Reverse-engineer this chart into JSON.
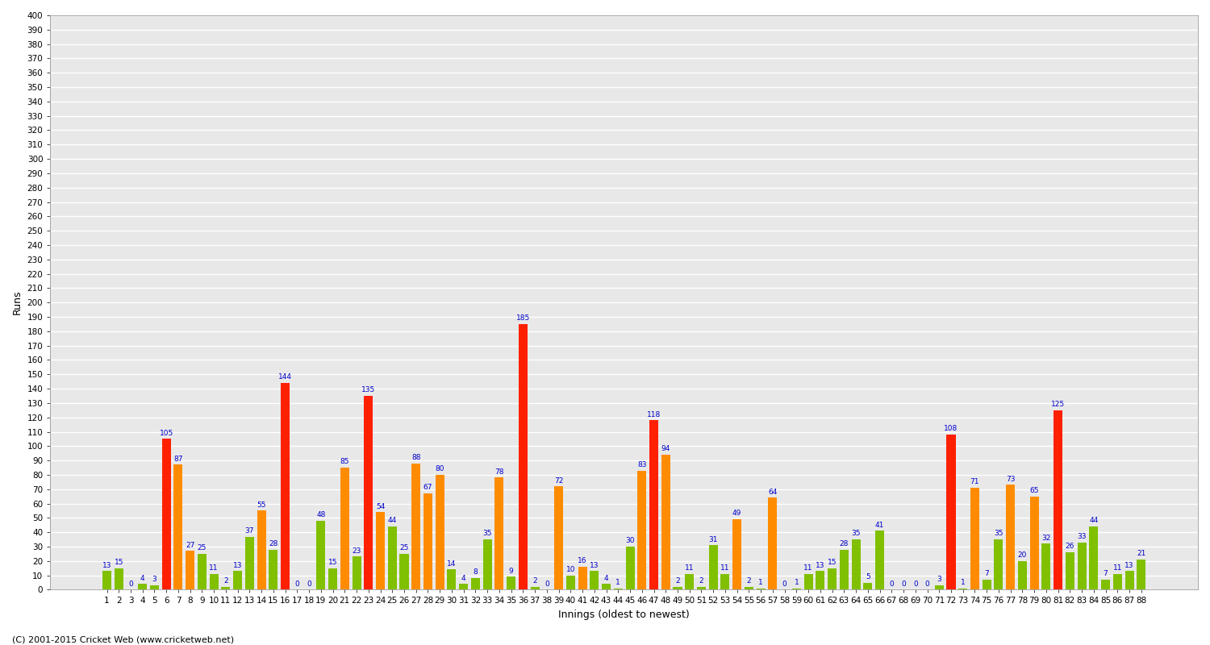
{
  "xlabel": "Innings (oldest to newest)",
  "ylabel": "Runs",
  "plot_bg_color": "#e8e8e8",
  "fig_bg_color": "#ffffff",
  "grid_color": "#ffffff",
  "innings": [
    1,
    2,
    3,
    4,
    5,
    6,
    7,
    8,
    9,
    10,
    11,
    12,
    13,
    14,
    15,
    16,
    17,
    18,
    19,
    20,
    21,
    22,
    23,
    24,
    25,
    26,
    27,
    28,
    29,
    30,
    31,
    32,
    33,
    34,
    35,
    36,
    37,
    38,
    39,
    40,
    41,
    42,
    43,
    44,
    45,
    46,
    47,
    48,
    49,
    50,
    51,
    52,
    53,
    54,
    55,
    56,
    57,
    58,
    59,
    60,
    61,
    62,
    63,
    64,
    65,
    66,
    67,
    68,
    69,
    70,
    71,
    72,
    73,
    74,
    75,
    76,
    77,
    78,
    79,
    80,
    81,
    82,
    83,
    84,
    85,
    86,
    87,
    88
  ],
  "values": [
    13,
    15,
    0,
    4,
    3,
    105,
    87,
    27,
    25,
    11,
    2,
    13,
    37,
    55,
    28,
    144,
    0,
    0,
    48,
    15,
    85,
    23,
    135,
    54,
    44,
    25,
    88,
    67,
    80,
    14,
    4,
    8,
    35,
    78,
    9,
    185,
    2,
    0,
    72,
    10,
    16,
    13,
    4,
    1,
    30,
    83,
    118,
    94,
    2,
    11,
    2,
    31,
    11,
    49,
    2,
    1,
    64,
    0,
    1,
    11,
    13,
    15,
    28,
    35,
    5,
    41,
    0,
    0,
    0,
    0,
    3,
    108,
    1,
    71,
    7,
    35,
    73,
    20,
    65,
    32,
    125,
    26,
    33,
    44,
    7,
    11,
    13,
    21
  ],
  "colors": [
    "#80c000",
    "#80c000",
    "#80c000",
    "#80c000",
    "#80c000",
    "#ff2000",
    "#ff8c00",
    "#ff8c00",
    "#80c000",
    "#80c000",
    "#80c000",
    "#80c000",
    "#80c000",
    "#ff8c00",
    "#80c000",
    "#ff2000",
    "#80c000",
    "#80c000",
    "#80c000",
    "#80c000",
    "#ff8c00",
    "#80c000",
    "#ff2000",
    "#ff8c00",
    "#80c000",
    "#80c000",
    "#ff8c00",
    "#ff8c00",
    "#ff8c00",
    "#80c000",
    "#80c000",
    "#80c000",
    "#80c000",
    "#ff8c00",
    "#80c000",
    "#ff2000",
    "#80c000",
    "#80c000",
    "#ff8c00",
    "#80c000",
    "#ff8c00",
    "#80c000",
    "#80c000",
    "#80c000",
    "#80c000",
    "#ff8c00",
    "#ff2000",
    "#ff8c00",
    "#80c000",
    "#80c000",
    "#80c000",
    "#80c000",
    "#80c000",
    "#ff8c00",
    "#80c000",
    "#80c000",
    "#ff8c00",
    "#80c000",
    "#80c000",
    "#80c000",
    "#80c000",
    "#80c000",
    "#80c000",
    "#80c000",
    "#80c000",
    "#80c000",
    "#80c000",
    "#80c000",
    "#80c000",
    "#80c000",
    "#80c000",
    "#ff2000",
    "#80c000",
    "#ff8c00",
    "#80c000",
    "#80c000",
    "#ff8c00",
    "#80c000",
    "#ff8c00",
    "#80c000",
    "#ff2000",
    "#80c000",
    "#80c000",
    "#80c000",
    "#80c000",
    "#80c000",
    "#80c000",
    "#80c000"
  ],
  "ylim": [
    0,
    400
  ],
  "ytick_step": 10,
  "label_color": "#0000cc",
  "label_fontsize": 6.5,
  "bar_width": 0.75,
  "tick_fontsize": 7.5,
  "axis_label_fontsize": 9,
  "copyright": "(C) 2001-2015 Cricket Web (www.cricketweb.net)"
}
